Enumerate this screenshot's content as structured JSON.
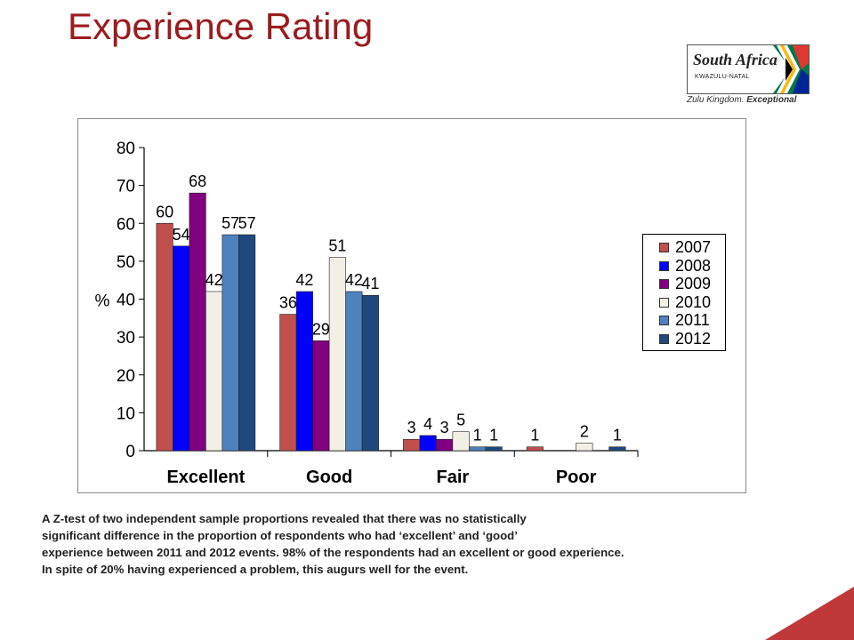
{
  "page": {
    "title": "Experience Rating",
    "logo": {
      "brand": "South Africa",
      "region": "KWAZULU-NATAL",
      "tagline_part1": "Zulu Kingdom.",
      "tagline_part2": "Exceptional"
    },
    "note_lines": [
      "A Z-test of two independent sample proportions revealed that there was no statistically",
      "significant difference in the proportion of respondents who  had ‘excellent’ and ‘good’",
      "experience between 2011 and 2012 events. 98% of the respondents had an excellent or good experience.",
      "In spite of 20% having experienced a problem, this augurs well for the event."
    ],
    "colors": {
      "title": "#9b1b1f",
      "corner_accent": "#c0383a"
    }
  },
  "chart_data": {
    "type": "bar",
    "title": "",
    "xlabel": "",
    "ylabel": "%",
    "ylim": [
      0,
      80
    ],
    "yticks": [
      0,
      10,
      20,
      30,
      40,
      50,
      60,
      70,
      80
    ],
    "categories": [
      "Excellent",
      "Good",
      "Fair",
      "Poor"
    ],
    "grid": false,
    "legend_position": "right",
    "series": [
      {
        "name": "2007",
        "color": "#c0504d",
        "values": [
          60,
          36,
          3,
          1
        ],
        "labels": [
          "60",
          "36",
          "3",
          "1"
        ]
      },
      {
        "name": "2008",
        "color": "#0000ff",
        "values": [
          54,
          42,
          4,
          0
        ],
        "labels": [
          "54",
          "42",
          "4",
          ""
        ]
      },
      {
        "name": "2009",
        "color": "#800080",
        "values": [
          68,
          29,
          3,
          0
        ],
        "labels": [
          "68",
          "29",
          "3",
          ""
        ]
      },
      {
        "name": "2010",
        "color": "#f2efe4",
        "values": [
          42,
          51,
          5,
          2
        ],
        "labels": [
          "42",
          "51",
          "5",
          "2"
        ]
      },
      {
        "name": "2011",
        "color": "#4f81bd",
        "values": [
          57,
          42,
          1,
          0
        ],
        "labels": [
          "57",
          "42",
          "1",
          ""
        ]
      },
      {
        "name": "2012",
        "color": "#1f497d",
        "values": [
          57,
          41,
          1,
          1
        ],
        "labels": [
          "57",
          "41",
          "1",
          "1"
        ]
      }
    ]
  }
}
